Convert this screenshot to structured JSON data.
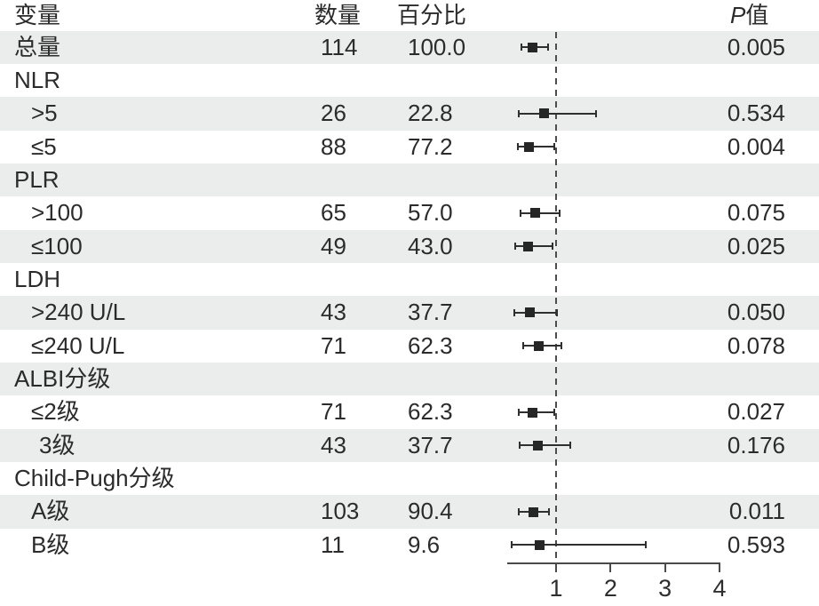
{
  "chart_data": {
    "type": "scatter",
    "subtype": "forest-plot",
    "title": "",
    "xlabel": "",
    "legend": null,
    "grid": false,
    "header": {
      "variable": "变量",
      "count": "数量",
      "percent": "百分比",
      "p_italic": "P",
      "p_rest": "值"
    },
    "x_ticks": [
      "1",
      "2",
      "3",
      "4"
    ],
    "x_tick_values": [
      1,
      2,
      3,
      4
    ],
    "ref_line": 1,
    "xlim": [
      0.1,
      4.0
    ],
    "rows": [
      {
        "label": "总量",
        "indent": 0,
        "group": false,
        "count": "114",
        "percent": "100.0",
        "p": "0.005",
        "est": 0.56,
        "lo": 0.36,
        "hi": 0.85
      },
      {
        "label": "NLR",
        "indent": 0,
        "group": true
      },
      {
        "label": ">5",
        "indent": 1,
        "group": false,
        "count": "26",
        "percent": "22.8",
        "p": "0.534",
        "est": 0.78,
        "lo": 0.32,
        "hi": 1.74
      },
      {
        "label": "≤5",
        "indent": 1,
        "group": false,
        "count": "88",
        "percent": "77.2",
        "p": "0.004",
        "est": 0.51,
        "lo": 0.3,
        "hi": 0.96
      },
      {
        "label": "PLR",
        "indent": 0,
        "group": true
      },
      {
        "label": ">100",
        "indent": 1,
        "group": false,
        "count": "65",
        "percent": "57.0",
        "p": "0.075",
        "est": 0.62,
        "lo": 0.35,
        "hi": 1.07
      },
      {
        "label": "≤100",
        "indent": 1,
        "group": false,
        "count": "49",
        "percent": "43.0",
        "p": "0.025",
        "est": 0.49,
        "lo": 0.25,
        "hi": 0.93
      },
      {
        "label": "LDH",
        "indent": 0,
        "group": true
      },
      {
        "label": ">240 U/L",
        "indent": 1,
        "group": false,
        "count": "43",
        "percent": "37.7",
        "p": "0.050",
        "est": 0.52,
        "lo": 0.24,
        "hi": 1.01
      },
      {
        "label": "≤240 U/L",
        "indent": 1,
        "group": false,
        "count": "71",
        "percent": "62.3",
        "p": "0.078",
        "est": 0.69,
        "lo": 0.39,
        "hi": 1.09
      },
      {
        "label": "ALBI分级",
        "indent": 0,
        "group": true
      },
      {
        "label": "≤2级",
        "indent": 1,
        "group": false,
        "count": "71",
        "percent": "62.3",
        "p": "0.027",
        "est": 0.56,
        "lo": 0.32,
        "hi": 0.97
      },
      {
        "label": "3级",
        "indent": 2,
        "group": false,
        "count": "43",
        "percent": "37.7",
        "p": "0.176",
        "est": 0.66,
        "lo": 0.33,
        "hi": 1.26
      },
      {
        "label": "Child-Pugh分级",
        "indent": 0,
        "group": true
      },
      {
        "label": "A级",
        "indent": 1,
        "group": false,
        "count": "103",
        "percent": "90.4",
        "p": "0.011",
        "est": 0.59,
        "lo": 0.32,
        "hi": 0.87
      },
      {
        "label": "B级",
        "indent": 1,
        "group": false,
        "count": "11",
        "percent": "9.6",
        "p": "0.593",
        "est": 0.7,
        "lo": 0.18,
        "hi": 2.64
      }
    ]
  },
  "colors": {
    "row_alt": "#ebecec",
    "ink": "#2b2b2b",
    "marker": "#262626",
    "ref_line": "#4d4d4d",
    "axis": "#4a4a4a"
  }
}
